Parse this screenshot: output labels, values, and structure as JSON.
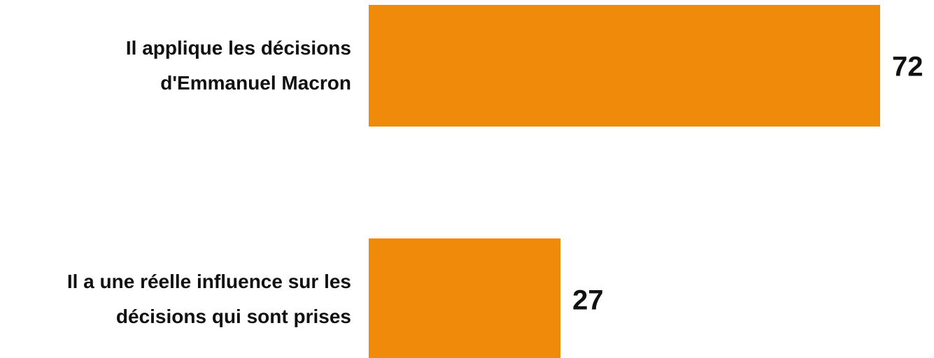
{
  "chart_data": {
    "type": "barh",
    "categories": [
      "Il applique les décisions d'Emmanuel Macron",
      "Il a une réelle influence sur les décisions qui sont prises"
    ],
    "values": [
      72,
      27
    ],
    "color": "#f08a0b"
  }
}
